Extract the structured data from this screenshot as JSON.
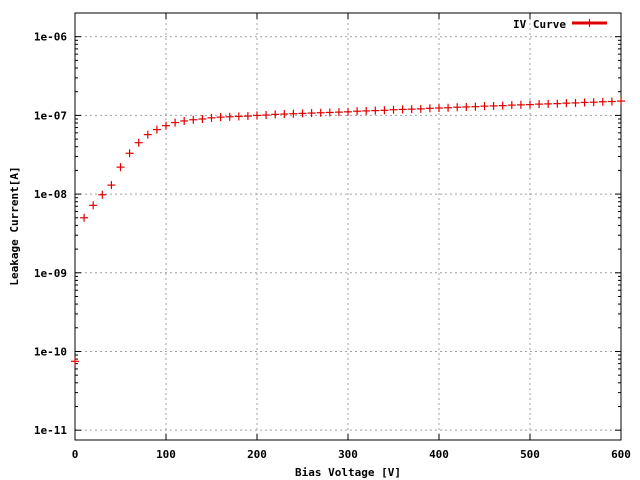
{
  "chart_data": {
    "type": "scatter",
    "xlabel": "Bias Voltage [V]",
    "ylabel": "Leakage Current[A]",
    "xlim": [
      0,
      600
    ],
    "ylim": [
      7.5e-12,
      2e-06
    ],
    "yscale": "log",
    "grid": true,
    "legend_position": "top-right",
    "x_ticks": [
      0,
      100,
      200,
      300,
      400,
      500,
      600
    ],
    "x_tick_labels": [
      "0",
      "100",
      "200",
      "300",
      "400",
      "500",
      "600"
    ],
    "y_ticks": [
      1e-11,
      1e-10,
      1e-09,
      1e-08,
      1e-07,
      1e-06
    ],
    "y_tick_labels": [
      "1e-11",
      "1e-10",
      "1e-09",
      "1e-08",
      "1e-07",
      "1e-06"
    ],
    "series": [
      {
        "name": "IV Curve",
        "color": "#e00000",
        "marker": "plus",
        "x": [
          0,
          10,
          20,
          30,
          40,
          50,
          60,
          70,
          80,
          90,
          100,
          110,
          120,
          130,
          140,
          150,
          160,
          170,
          180,
          190,
          200,
          210,
          220,
          230,
          240,
          250,
          260,
          270,
          280,
          290,
          300,
          310,
          320,
          330,
          340,
          350,
          360,
          370,
          380,
          390,
          400,
          410,
          420,
          430,
          440,
          450,
          460,
          470,
          480,
          490,
          500,
          510,
          520,
          530,
          540,
          550,
          560,
          570,
          580,
          590,
          600
        ],
        "y": [
          7.5e-11,
          5e-09,
          7.2e-09,
          9.8e-09,
          1.3e-08,
          2.2e-08,
          3.3e-08,
          4.5e-08,
          5.7e-08,
          6.6e-08,
          7.4e-08,
          8.1e-08,
          8.5e-08,
          8.8e-08,
          9e-08,
          9.3e-08,
          9.5e-08,
          9.6e-08,
          9.7e-08,
          9.8e-08,
          1e-07,
          1.01e-07,
          1.03e-07,
          1.04e-07,
          1.05e-07,
          1.06e-07,
          1.07e-07,
          1.08e-07,
          1.09e-07,
          1.1e-07,
          1.11e-07,
          1.13e-07,
          1.14e-07,
          1.15e-07,
          1.16e-07,
          1.18e-07,
          1.19e-07,
          1.2e-07,
          1.21e-07,
          1.23e-07,
          1.24e-07,
          1.25e-07,
          1.27e-07,
          1.28e-07,
          1.29e-07,
          1.31e-07,
          1.32e-07,
          1.33e-07,
          1.35e-07,
          1.36e-07,
          1.37e-07,
          1.39e-07,
          1.4e-07,
          1.41e-07,
          1.43e-07,
          1.44e-07,
          1.46e-07,
          1.47e-07,
          1.49e-07,
          1.5e-07,
          1.52e-07
        ]
      }
    ]
  }
}
